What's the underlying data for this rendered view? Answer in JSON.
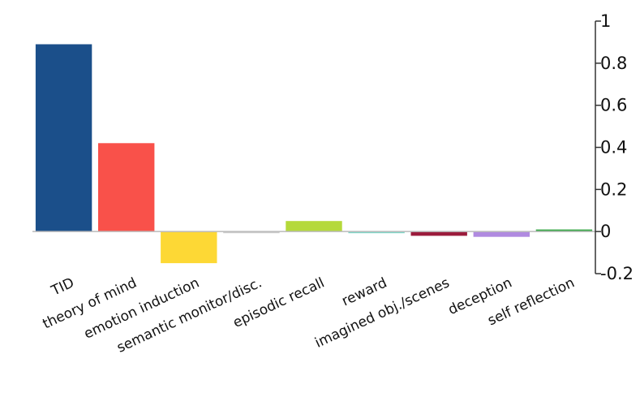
{
  "chart_data": {
    "type": "bar",
    "title": "",
    "xlabel": "",
    "ylabel": "",
    "categories": [
      "TID",
      "theory of mind",
      "emotion induction",
      "semantic monitor/disc.",
      "episodic recall",
      "reward",
      "imagined obj./scenes",
      "deception",
      "self reflection"
    ],
    "values": [
      0.89,
      0.42,
      -0.15,
      0.0,
      0.05,
      0.0,
      -0.02,
      -0.025,
      0.01
    ],
    "colors": [
      "#1b4f8a",
      "#f9514a",
      "#fdd835",
      "#cccccc",
      "#b5d93a",
      "#7fd6c8",
      "#9b1b3c",
      "#b08ae0",
      "#3aa84a"
    ],
    "ylim": [
      -0.2,
      1
    ],
    "yticks": [
      1,
      0.8,
      0.6,
      0.4,
      0.2,
      0,
      -0.2
    ],
    "ytick_labels": [
      "1",
      "0.8",
      "0.6",
      "0.4",
      "0.2",
      "0",
      "-0.2"
    ],
    "axis_side": "right",
    "grid": false,
    "legend": "none"
  }
}
